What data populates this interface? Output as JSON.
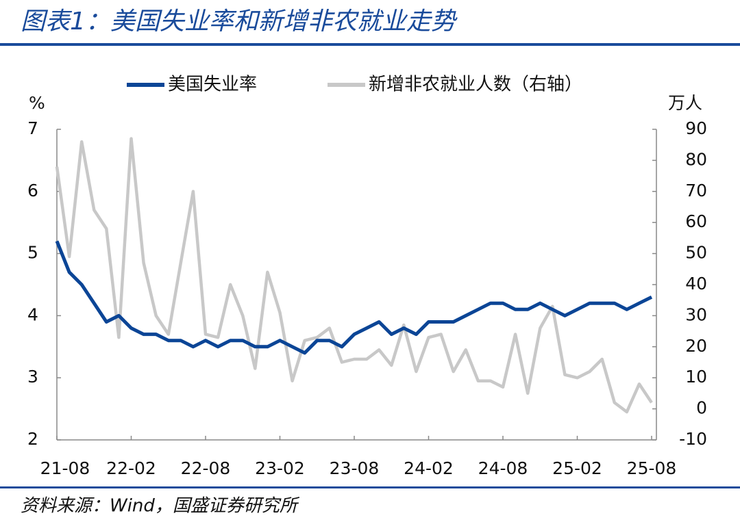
{
  "chart_data": {
    "type": "line",
    "title": "图表1：美国失业率和新增非农就业走势",
    "source": "资料来源：Wind，国盛证券研究所",
    "y_axis_label": "%",
    "y2_axis_label": "万人",
    "categories": [
      "21-08",
      null,
      null,
      null,
      null,
      null,
      "22-02",
      null,
      null,
      null,
      null,
      null,
      "22-08",
      null,
      null,
      null,
      null,
      null,
      "23-02",
      null,
      null,
      null,
      null,
      null,
      "23-08",
      null,
      null,
      null,
      null,
      null,
      "24-02",
      null,
      null,
      null,
      null,
      null,
      "24-08",
      null,
      null,
      null,
      null,
      null,
      "25-02",
      null,
      null,
      null,
      null,
      null,
      "25-08"
    ],
    "series": [
      {
        "name": "美国失业率",
        "color": "#0b4596",
        "values": [
          5.2,
          4.7,
          4.5,
          4.2,
          3.9,
          4.0,
          3.8,
          3.7,
          3.7,
          3.6,
          3.6,
          3.5,
          3.6,
          3.5,
          3.6,
          3.6,
          3.5,
          3.5,
          3.6,
          3.5,
          3.4,
          3.6,
          3.6,
          3.5,
          3.7,
          3.8,
          3.9,
          3.7,
          3.8,
          3.7,
          3.9,
          3.9,
          3.9,
          4.0,
          4.1,
          4.2,
          4.2,
          4.1,
          4.1,
          4.2,
          4.1,
          4.0,
          4.1,
          4.2,
          4.2,
          4.2,
          4.1,
          4.2,
          4.3
        ]
      },
      {
        "name": "新增非农就业人数（右轴）",
        "color": "#c8c8c8",
        "axis": "y2",
        "values": [
          78,
          49,
          86,
          64,
          58,
          23,
          87,
          47,
          30,
          24,
          47,
          70,
          24,
          23,
          40,
          30,
          13,
          44,
          31,
          9,
          22,
          23,
          26,
          15,
          16,
          16,
          19,
          14,
          27,
          12,
          23,
          24,
          12,
          19,
          9,
          9,
          7,
          24,
          5,
          26,
          33,
          11,
          10,
          12,
          16,
          2,
          -1,
          8,
          2
        ]
      }
    ],
    "ylim": [
      2,
      7
    ],
    "yticks": [
      2,
      3,
      4,
      5,
      6,
      7
    ],
    "y2lim": [
      -10,
      90
    ],
    "y2ticks": [
      -10,
      0,
      10,
      20,
      30,
      40,
      50,
      60,
      70,
      80,
      90
    ],
    "legend": "top"
  }
}
